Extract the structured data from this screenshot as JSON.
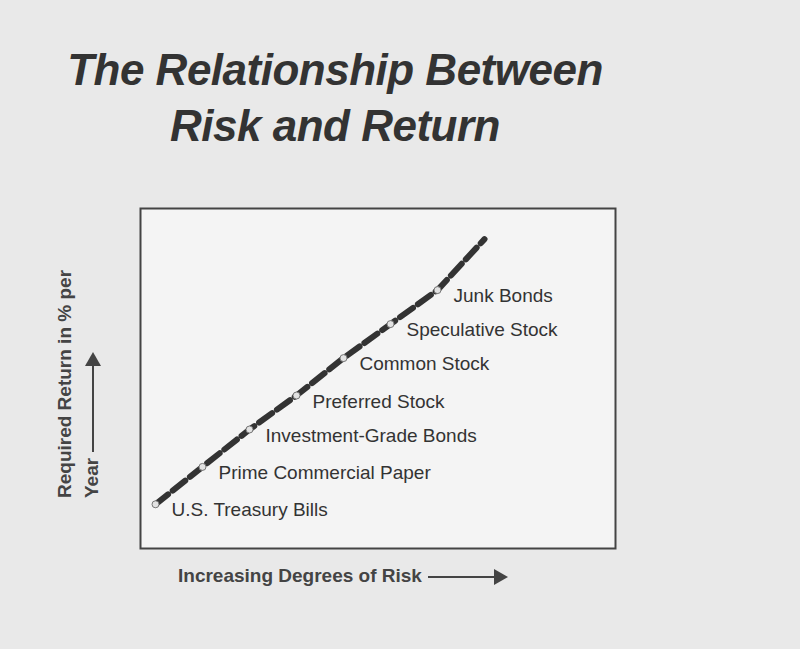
{
  "chart_data": {
    "type": "line",
    "title": "The Relationship Between Risk and Return",
    "x_label": "Increasing Degrees of Risk",
    "y_label": "Required Return in % per Year",
    "categories": [
      "U.S. Treasury Bills",
      "Prime Commercial Paper",
      "Investment-Grade Bonds",
      "Preferred Stock",
      "Common Stock",
      "Speculative Stock",
      "Junk Bonds",
      null
    ],
    "values": [
      1.3,
      2.4,
      3.5,
      4.5,
      5.6,
      6.6,
      7.6,
      9.1
    ],
    "ylim": [
      0,
      10
    ],
    "color": "#333333",
    "line_style": "dashed",
    "marker": "circle",
    "tick_labels": false
  }
}
